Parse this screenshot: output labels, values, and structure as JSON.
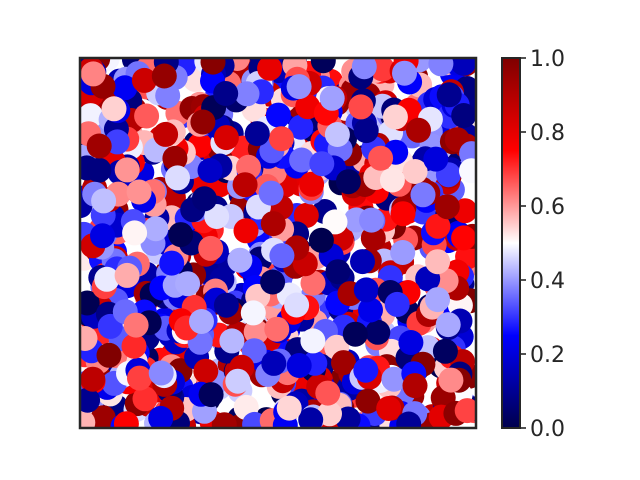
{
  "chart_data": {
    "type": "scatter",
    "title": "",
    "xlabel": "",
    "ylabel": "",
    "xlim": [
      0,
      1
    ],
    "ylim": [
      0,
      1
    ],
    "x_ticks_visible": false,
    "y_ticks_visible": false,
    "grid": false,
    "legend": "none",
    "marker": "circle",
    "n_points": 1000,
    "point_values": "uniform random in [0, 1]",
    "colormap": "seismic",
    "colormap_stops": [
      {
        "value": 0.0,
        "color": "#00004c"
      },
      {
        "value": 0.25,
        "color": "#0000ff"
      },
      {
        "value": 0.5,
        "color": "#ffffff"
      },
      {
        "value": 0.75,
        "color": "#ff0000"
      },
      {
        "value": 1.0,
        "color": "#7f0000"
      }
    ],
    "colorbar": {
      "min": 0.0,
      "max": 1.0,
      "ticks": [
        "0.0",
        "0.2",
        "0.4",
        "0.6",
        "0.8",
        "1.0"
      ],
      "placement": "right"
    }
  }
}
